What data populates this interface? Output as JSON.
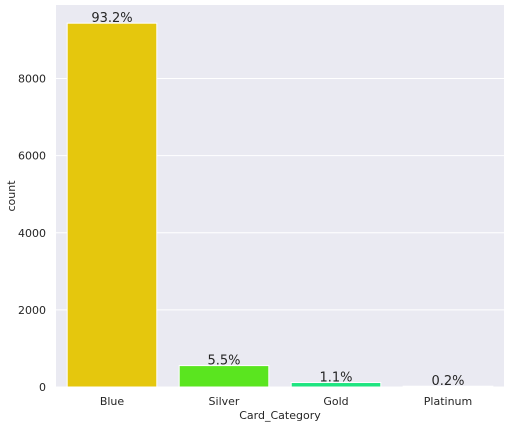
{
  "chart_data": {
    "type": "bar",
    "categories": [
      "Blue",
      "Silver",
      "Gold",
      "Platinum"
    ],
    "values": [
      9436,
      555,
      116,
      20
    ],
    "data_labels": [
      "93.2%",
      "5.5%",
      "1.1%",
      "0.2%"
    ],
    "title": "",
    "xlabel": "Card_Category",
    "ylabel": "count",
    "ylim": [
      0,
      9908
    ],
    "yticks": [
      0,
      2000,
      4000,
      6000,
      8000
    ],
    "grid": true,
    "legend": "none",
    "colors": [
      "#e5c70d",
      "#5ae51f",
      "#1ee580",
      "#17e6e2"
    ],
    "background": "#eaeaf2",
    "gridline_color": "#ffffff"
  }
}
